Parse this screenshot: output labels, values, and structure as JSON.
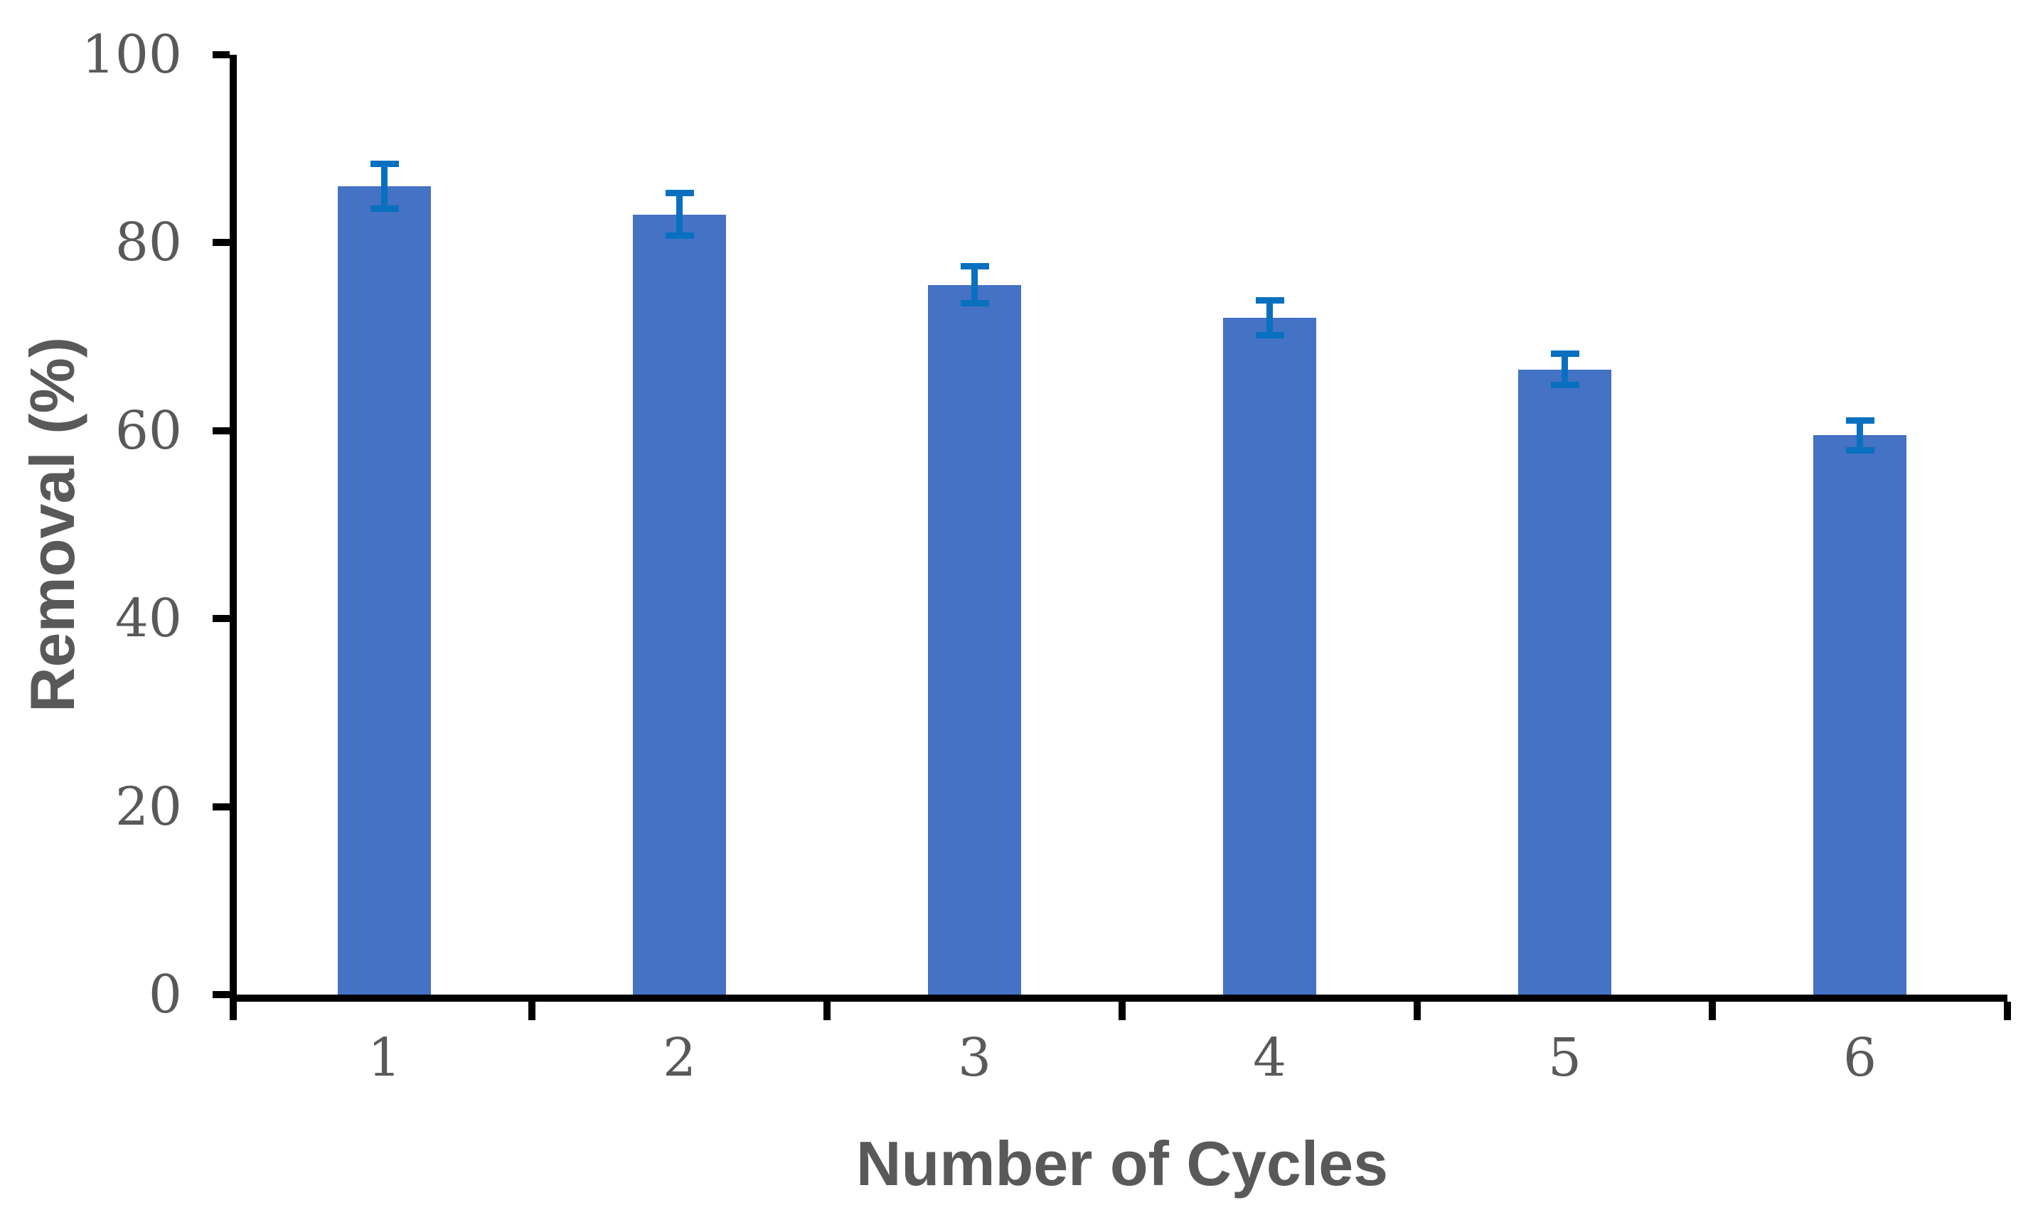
{
  "figure": {
    "background_color": "#ffffff"
  },
  "chart_data": {
    "type": "bar",
    "title": "",
    "xlabel": "Number of Cycles",
    "ylabel": "Removal (%)",
    "categories": [
      "1",
      "2",
      "3",
      "4",
      "5",
      "6"
    ],
    "series": [
      {
        "name": "Removal",
        "values": [
          86,
          83,
          75.5,
          72,
          66.5,
          59.5
        ],
        "error_bars": [
          2.7,
          2.6,
          2.3,
          2.2,
          2.0,
          1.9
        ]
      }
    ],
    "ylim": [
      0,
      100
    ],
    "yticks": [
      0,
      20,
      40,
      60,
      80,
      100
    ],
    "ytick_labels": [
      "0",
      "20",
      "40",
      "60",
      "80",
      "100"
    ],
    "grid": false,
    "legend_position": "none",
    "bar_color": "#4472C4",
    "error_bar_color": "#0970C0",
    "axis_line_color": "#000000",
    "text_color": "#595959"
  }
}
